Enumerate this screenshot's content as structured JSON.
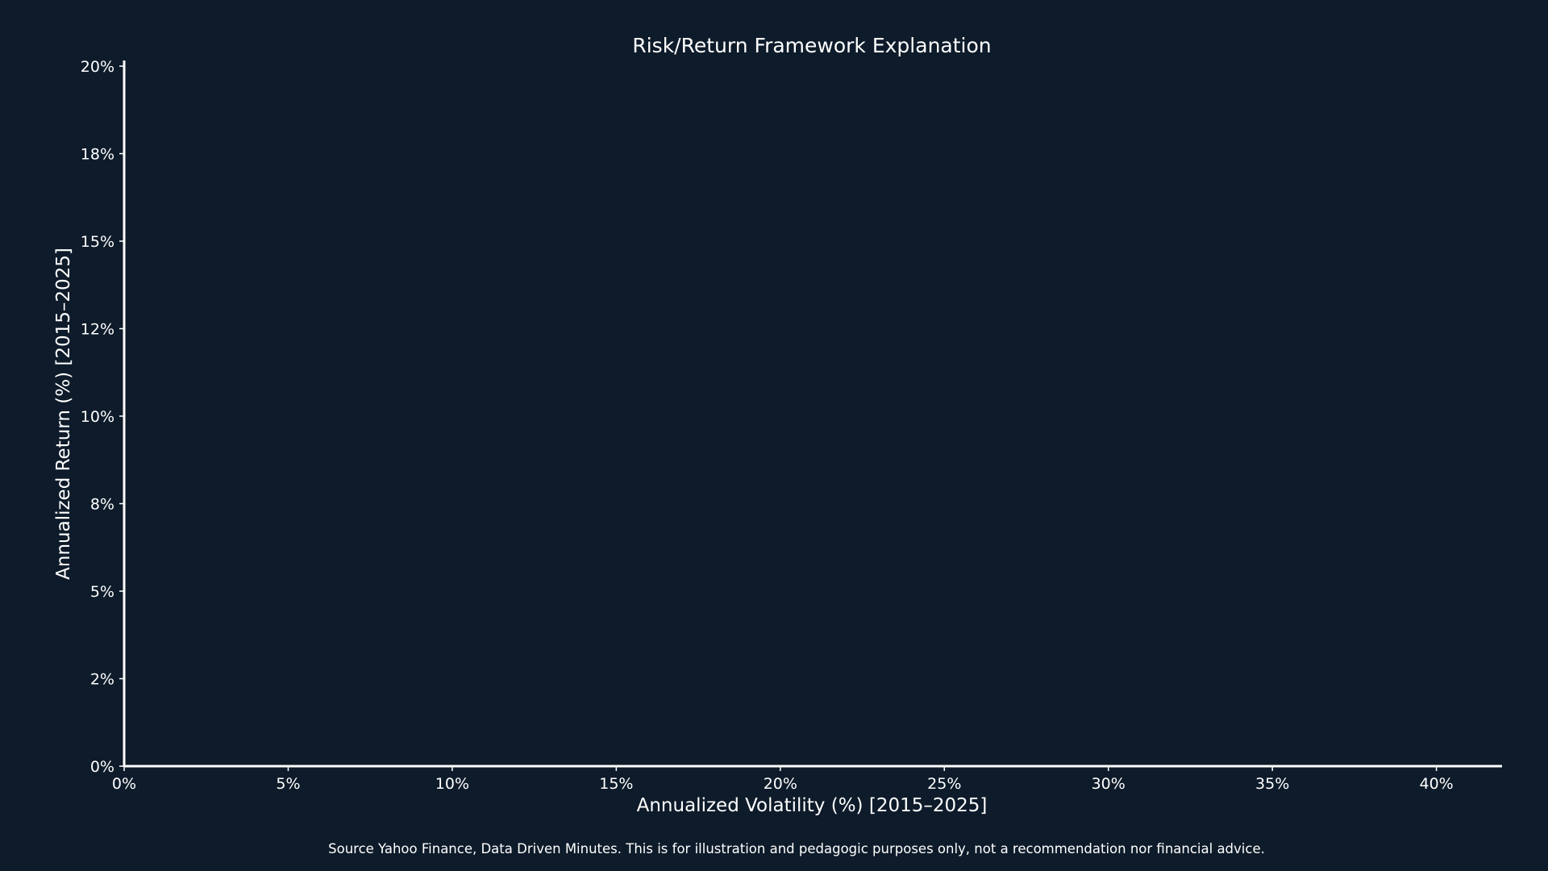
{
  "chart_data": {
    "type": "scatter",
    "title": "Risk/Return Framework Explanation",
    "xlabel": "Annualized Volatility (%) [2015–2025]",
    "ylabel": "Annualized Return (%) [2015–2025]",
    "xlim": [
      0,
      42
    ],
    "ylim": [
      0,
      20
    ],
    "x_ticks": [
      0,
      5,
      10,
      15,
      20,
      25,
      30,
      35,
      40
    ],
    "x_tick_labels": [
      "0%",
      "5%",
      "10%",
      "15%",
      "20%",
      "25%",
      "30%",
      "35%",
      "40%"
    ],
    "y_ticks": [
      0,
      2.5,
      5,
      7.5,
      10,
      12.5,
      15,
      17.5,
      20
    ],
    "y_tick_labels": [
      "0%",
      "2%",
      "5%",
      "8%",
      "10%",
      "12%",
      "15%",
      "18%",
      "20%"
    ],
    "grid": false,
    "series": []
  },
  "footnote": "Source Yahoo Finance, Data Driven Minutes. This is for illustration and pedagogic purposes only, not a recommendation nor financial advice.",
  "colors": {
    "background": "#0e1b2a",
    "axis": "#ffffff",
    "text": "#ffffff"
  }
}
